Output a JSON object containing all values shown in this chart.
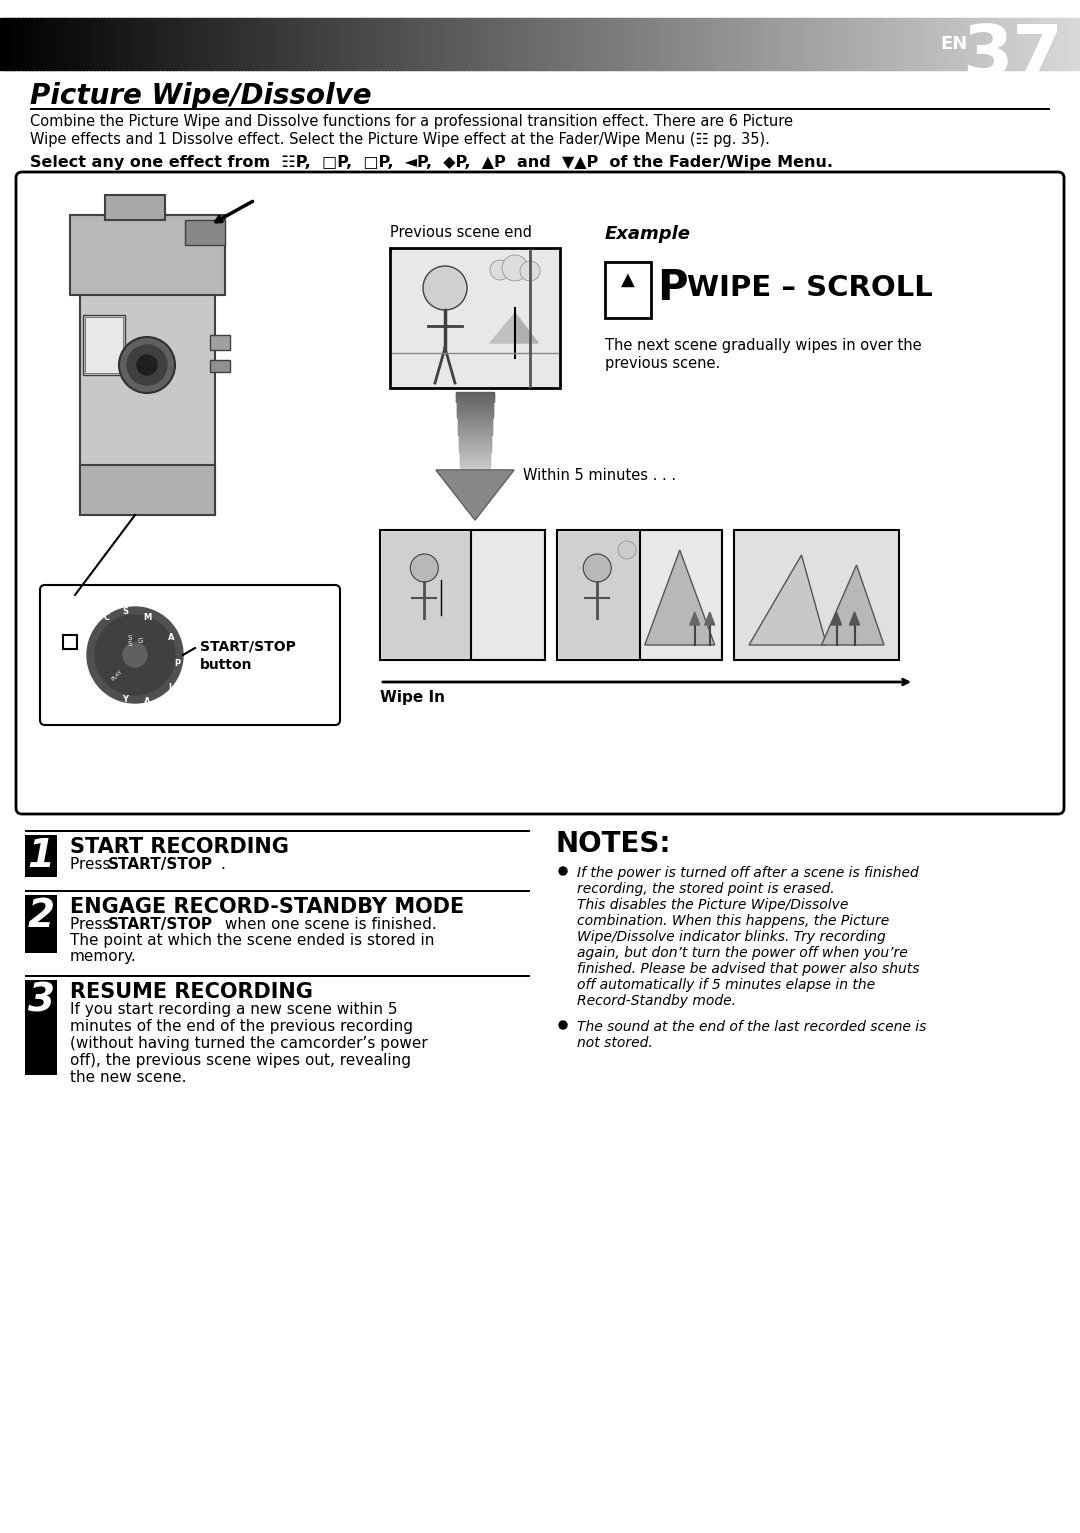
{
  "page_number": "37",
  "page_number_prefix": "EN",
  "title": "Picture Wipe/Dissolve",
  "intro_line1": "Combine the Picture Wipe and Dissolve functions for a professional transition effect. There are 6 Picture",
  "intro_line2": "Wipe effects and 1 Dissolve effect. Select the Picture Wipe effect at the Fader/Wipe Menu (☷ pg. 35).",
  "bold_line_pre": "Select any one effect from ",
  "bold_line_post": "P of the Fader/Wipe Menu.",
  "step1_num": "1",
  "step1_title": "START RECORDING",
  "step1_body": "Press START/STOP.",
  "step2_num": "2",
  "step2_title": "ENGAGE RECORD-STANDBY MODE",
  "step2_body_lines": [
    "Press START/STOP when one scene is finished.",
    "The point at which the scene ended is stored in",
    "memory."
  ],
  "step3_num": "3",
  "step3_title": "RESUME RECORDING",
  "step3_body_lines": [
    "If you start recording a new scene within 5",
    "minutes of the end of the previous recording",
    "(without having turned the camcorder’s power",
    "off), the previous scene wipes out, revealing",
    "the new scene."
  ],
  "notes_title": "NOTES:",
  "note1_lines": [
    "If the power is turned off after a scene is finished",
    "recording, the stored point is erased.",
    "This disables the Picture Wipe/Dissolve",
    "combination. When this happens, the Picture",
    "Wipe/Dissolve indicator blinks. Try recording",
    "again, but don’t turn the power off when you’re",
    "finished. Please be advised that power also shuts",
    "off automatically if 5 minutes elapse in the",
    "Record-Standby mode."
  ],
  "note2_lines": [
    "The sound at the end of the last recorded scene is",
    "not stored."
  ],
  "example_label": "Example",
  "wipe_label": "WIPE – SCROLL",
  "prev_scene_label": "Previous scene end",
  "within_label": "Within 5 minutes . . .",
  "wipe_in_label": "Wipe In",
  "start_stop_label1": "START/STOP",
  "start_stop_label2": "button",
  "bg_color": "#ffffff"
}
